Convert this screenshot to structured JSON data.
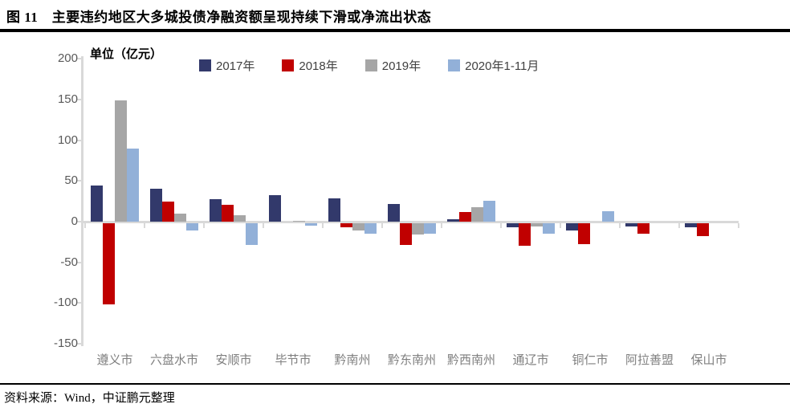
{
  "header": {
    "title": "图 11　主要违约地区大多城投债净融资额呈现持续下滑或净流出状态"
  },
  "footer": {
    "source": "资料来源：Wind，中证鹏元整理"
  },
  "chart_data": {
    "type": "bar",
    "title": "",
    "unit_label": "单位（亿元）",
    "xlabel": "",
    "ylabel": "亿元",
    "ylim": [
      -150,
      200
    ],
    "ytick_interval": 50,
    "yticks": [
      200,
      150,
      100,
      50,
      0,
      -50,
      -100,
      -150
    ],
    "grid": false,
    "legend_position": "top",
    "categories": [
      "遵义市",
      "六盘水市",
      "安顺市",
      "毕节市",
      "黔南州",
      "黔东南州",
      "黔西南州",
      "通辽市",
      "铜仁市",
      "阿拉善盟",
      "保山市"
    ],
    "series": [
      {
        "name": "2017年",
        "color": "#32396b",
        "values": [
          44,
          40,
          28,
          33,
          29,
          22,
          3,
          -5,
          -9,
          -4,
          -5
        ]
      },
      {
        "name": "2018年",
        "color": "#c00000",
        "values": [
          -100,
          25,
          21,
          0,
          -5,
          -27,
          12,
          -28,
          -26,
          -13,
          -16
        ]
      },
      {
        "name": "2019年",
        "color": "#a6a6a6",
        "values": [
          149,
          10,
          8,
          1,
          -9,
          -14,
          18,
          -4,
          0,
          0,
          0
        ]
      },
      {
        "name": "2020年1-11月",
        "color": "#92b0d8",
        "values": [
          90,
          -9,
          -27,
          -3,
          -13,
          -13,
          26,
          -13,
          13,
          0,
          0
        ]
      }
    ],
    "colors": {
      "axis_line": "#d9d9d9",
      "ytick_label": "#595959",
      "category_label": "#7f7f7f",
      "legend_label": "#404040",
      "rule": "#000000"
    }
  }
}
